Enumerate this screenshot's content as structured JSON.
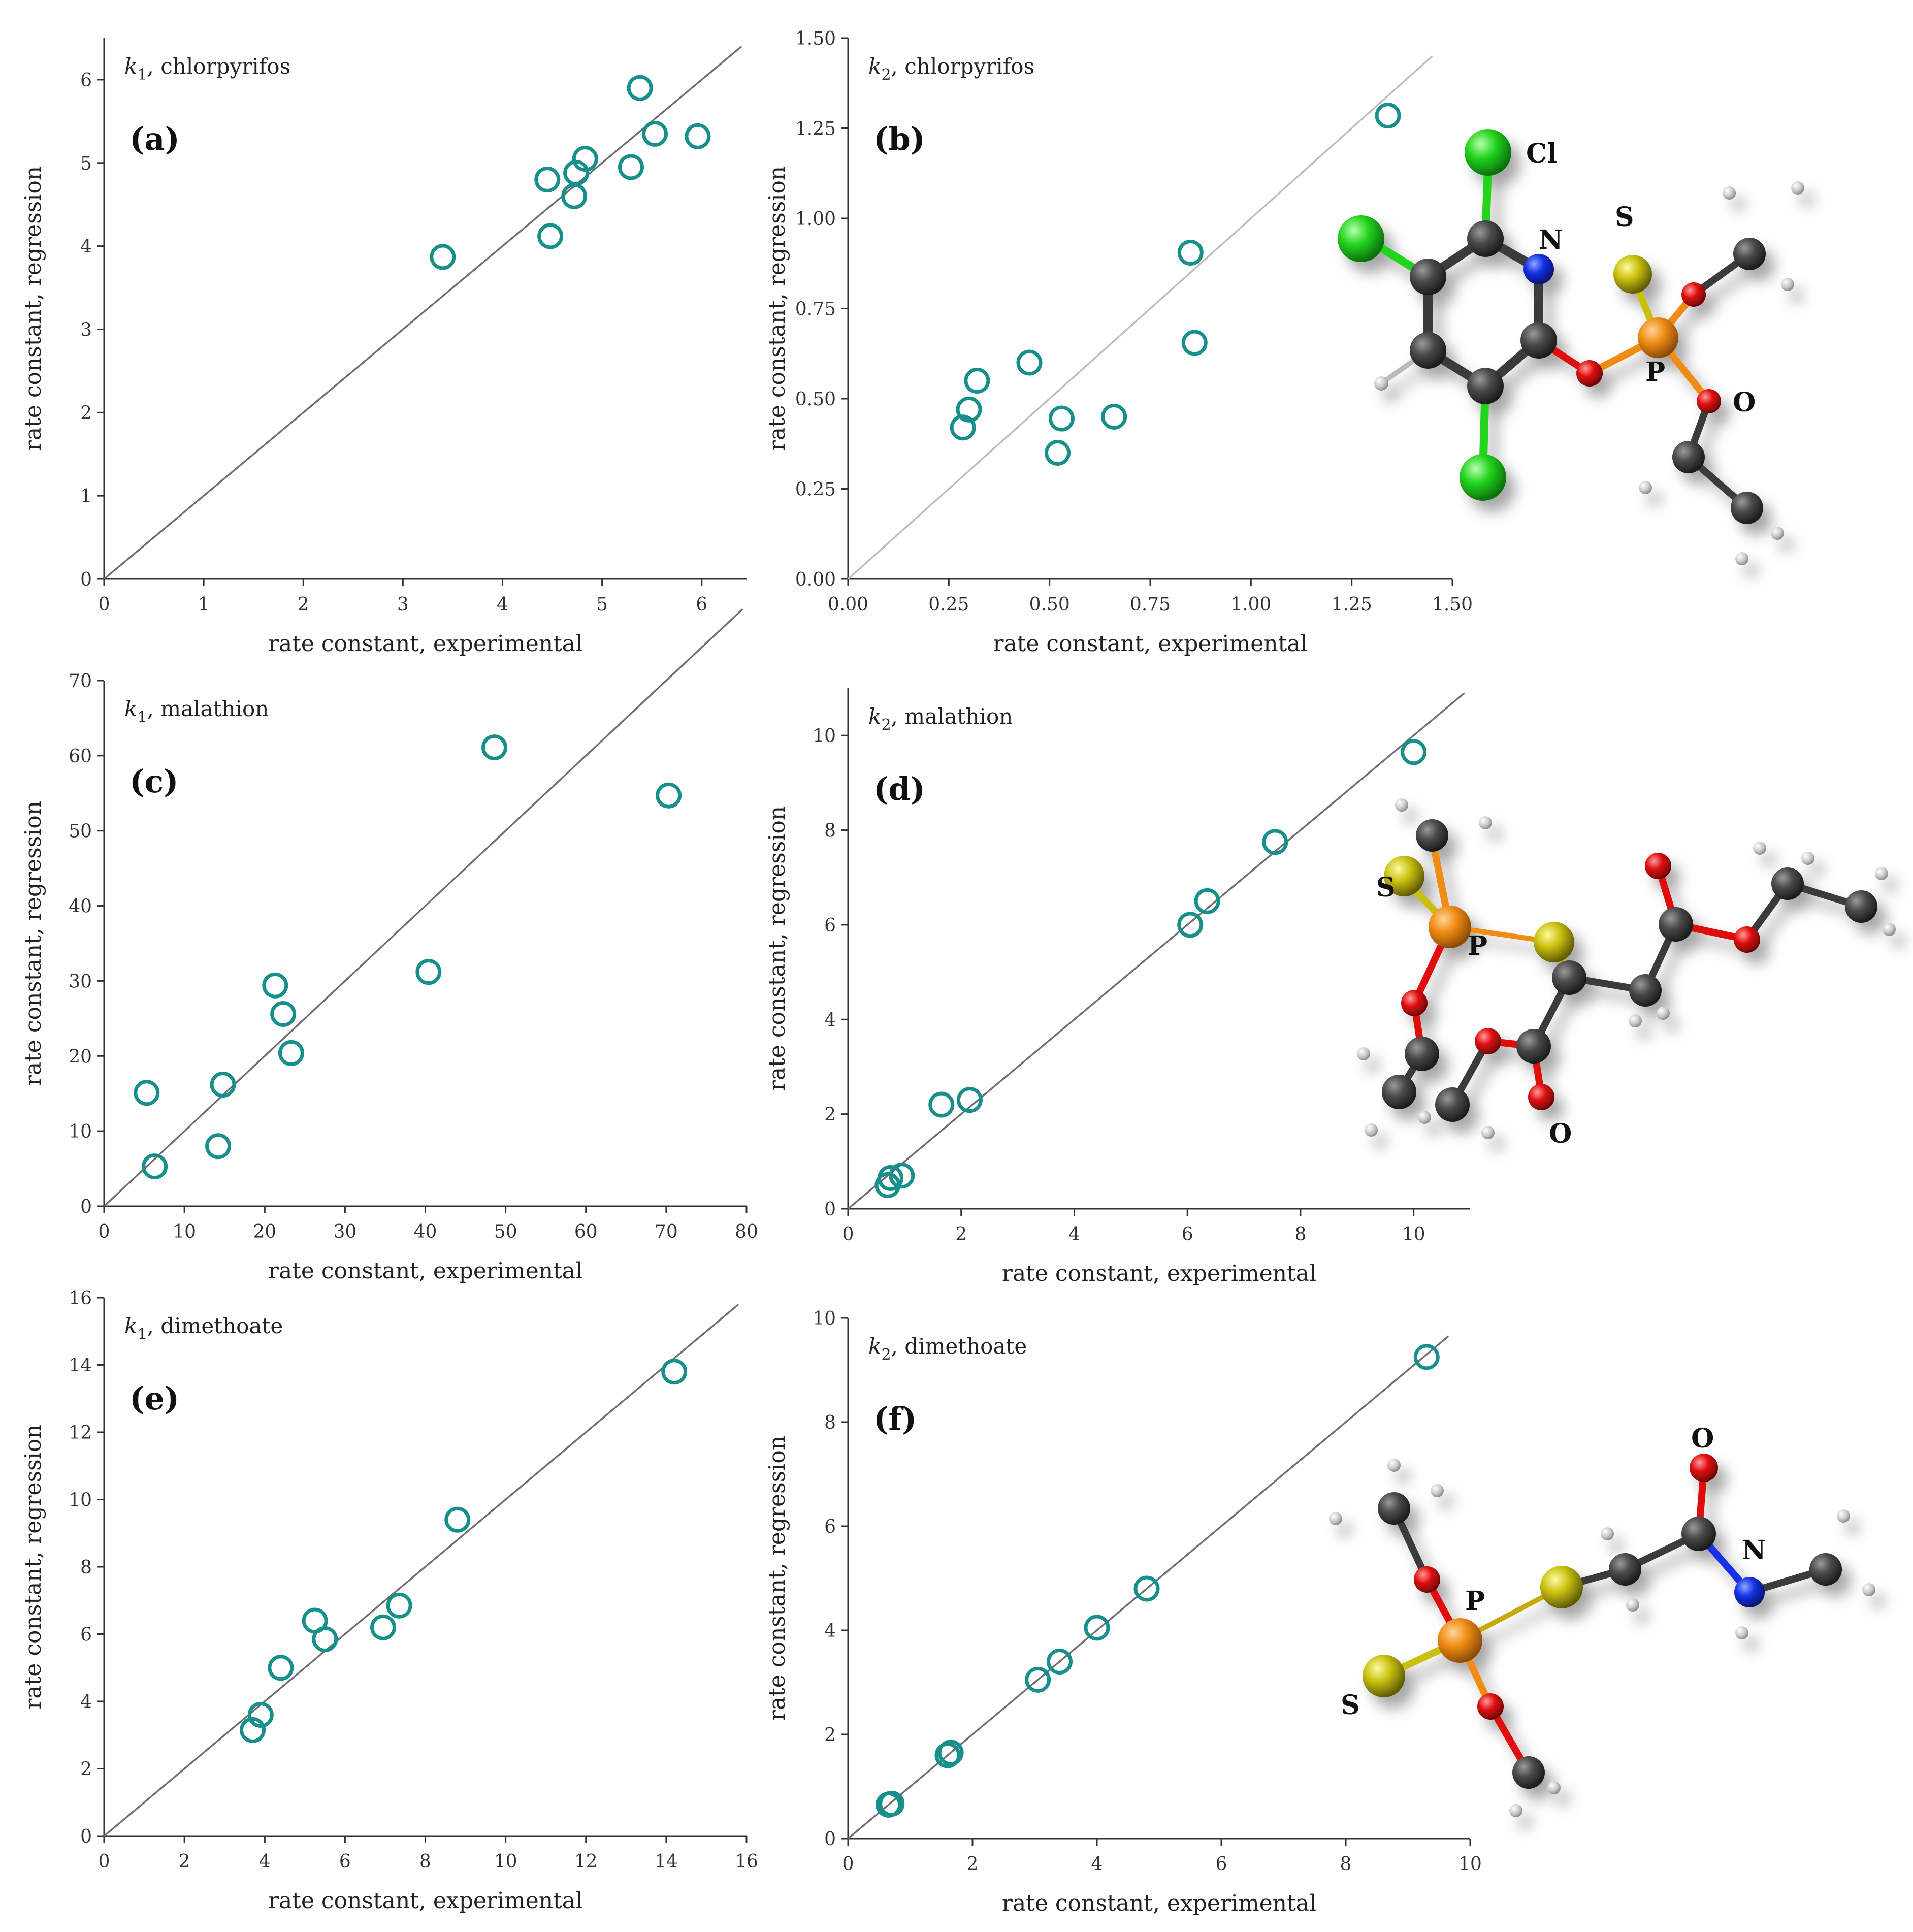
{
  "colors": {
    "marker": "#17908c",
    "axis": "#333333",
    "parity_line": "#6e6e6e",
    "parity_line_light": "#bdbdbd",
    "carbon": "#3a3a3a",
    "hydrogen": "#d9d9d9",
    "chlorine": "#22d41e",
    "nitrogen": "#1432e6",
    "oxygen": "#e00f0f",
    "phosphorus": "#f08c14",
    "sulfur": "#c9c00e"
  },
  "chart_data": [
    {
      "id": "a",
      "type": "scatter",
      "panel_label": "(a)",
      "title": {
        "k": "k",
        "sub": "1",
        "rest": ", chlorpyrifos"
      },
      "xlabel": "rate constant, experimental",
      "ylabel": "rate constant, regression",
      "xlim": [
        0,
        6.45
      ],
      "ylim": [
        0,
        6.5
      ],
      "xticks": [
        0,
        1,
        2,
        3,
        4,
        5,
        6
      ],
      "yticks": [
        0,
        1,
        2,
        3,
        4,
        5,
        6
      ],
      "xtick_labels": [
        "0",
        "1",
        "2",
        "3",
        "4",
        "5",
        "6"
      ],
      "ytick_labels": [
        "0",
        "1",
        "2",
        "3",
        "4",
        "5",
        "6"
      ],
      "parity_line": [
        0,
        6.4
      ],
      "line_style": "dark",
      "points": [
        {
          "x": 3.4,
          "y": 3.87
        },
        {
          "x": 4.45,
          "y": 4.8
        },
        {
          "x": 4.48,
          "y": 4.12
        },
        {
          "x": 4.72,
          "y": 4.6
        },
        {
          "x": 4.74,
          "y": 4.88
        },
        {
          "x": 4.83,
          "y": 5.05
        },
        {
          "x": 5.29,
          "y": 4.95
        },
        {
          "x": 5.38,
          "y": 5.9
        },
        {
          "x": 5.53,
          "y": 5.35
        },
        {
          "x": 5.96,
          "y": 5.32
        }
      ]
    },
    {
      "id": "b",
      "type": "scatter",
      "panel_label": "(b)",
      "title": {
        "k": "k",
        "sub": "2",
        "rest": ", chlorpyrifos"
      },
      "xlabel": "rate constant, experimental",
      "ylabel": "rate constant, regression",
      "xlim": [
        0,
        1.5
      ],
      "ylim": [
        0,
        1.5
      ],
      "xticks": [
        0,
        0.25,
        0.5,
        0.75,
        1.0,
        1.25,
        1.5
      ],
      "yticks": [
        0,
        0.25,
        0.5,
        0.75,
        1.0,
        1.25,
        1.5
      ],
      "xtick_labels": [
        "0.00",
        "0.25",
        "0.50",
        "0.75",
        "1.00",
        "1.25",
        "1.50"
      ],
      "ytick_labels": [
        "0.00",
        "0.25",
        "0.50",
        "0.75",
        "1.00",
        "1.25",
        "1.50"
      ],
      "parity_line": [
        0,
        1.45
      ],
      "line_style": "light",
      "points": [
        {
          "x": 0.285,
          "y": 0.42
        },
        {
          "x": 0.3,
          "y": 0.47
        },
        {
          "x": 0.32,
          "y": 0.55
        },
        {
          "x": 0.45,
          "y": 0.6
        },
        {
          "x": 0.52,
          "y": 0.35
        },
        {
          "x": 0.53,
          "y": 0.445
        },
        {
          "x": 0.66,
          "y": 0.45
        },
        {
          "x": 0.85,
          "y": 0.905
        },
        {
          "x": 0.86,
          "y": 0.655
        },
        {
          "x": 1.34,
          "y": 1.285
        }
      ]
    },
    {
      "id": "c",
      "type": "scatter",
      "panel_label": "(c)",
      "title": {
        "k": "k",
        "sub": "1",
        "rest": ", malathion"
      },
      "xlabel": "rate constant, experimental",
      "ylabel": "rate constant, regression",
      "xlim": [
        0,
        80
      ],
      "ylim": [
        0,
        70
      ],
      "xticks": [
        0,
        10,
        20,
        30,
        40,
        50,
        60,
        70,
        80
      ],
      "yticks": [
        0,
        10,
        20,
        30,
        40,
        50,
        60,
        70
      ],
      "xtick_labels": [
        "0",
        "10",
        "20",
        "30",
        "40",
        "50",
        "60",
        "70",
        "80"
      ],
      "ytick_labels": [
        "0",
        "10",
        "20",
        "30",
        "40",
        "50",
        "60",
        "70"
      ],
      "parity_line": [
        0,
        79.5
      ],
      "line_style": "dark",
      "points": [
        {
          "x": 5.3,
          "y": 15.1
        },
        {
          "x": 6.3,
          "y": 5.3
        },
        {
          "x": 14.2,
          "y": 8.0
        },
        {
          "x": 14.8,
          "y": 16.2
        },
        {
          "x": 21.3,
          "y": 29.4
        },
        {
          "x": 22.3,
          "y": 25.6
        },
        {
          "x": 23.3,
          "y": 20.4
        },
        {
          "x": 40.4,
          "y": 31.2
        },
        {
          "x": 48.6,
          "y": 61.1
        },
        {
          "x": 70.3,
          "y": 54.7
        }
      ]
    },
    {
      "id": "d",
      "type": "scatter",
      "panel_label": "(d)",
      "title": {
        "k": "k",
        "sub": "2",
        "rest": ", malathion"
      },
      "xlabel": "rate constant, experimental",
      "ylabel": "rate constant, regression",
      "xlim": [
        0,
        11
      ],
      "ylim": [
        0,
        11
      ],
      "xticks": [
        0,
        2,
        4,
        6,
        8,
        10
      ],
      "yticks": [
        0,
        2,
        4,
        6,
        8,
        10
      ],
      "xtick_labels": [
        "0",
        "2",
        "4",
        "6",
        "8",
        "10"
      ],
      "ytick_labels": [
        "0",
        "2",
        "4",
        "6",
        "8",
        "10"
      ],
      "parity_line": [
        0,
        10.9
      ],
      "line_style": "dark",
      "points": [
        {
          "x": 0.7,
          "y": 0.5
        },
        {
          "x": 0.75,
          "y": 0.65
        },
        {
          "x": 0.95,
          "y": 0.7
        },
        {
          "x": 1.65,
          "y": 2.2
        },
        {
          "x": 2.15,
          "y": 2.3
        },
        {
          "x": 6.05,
          "y": 6.0
        },
        {
          "x": 6.35,
          "y": 6.5
        },
        {
          "x": 7.55,
          "y": 7.75
        },
        {
          "x": 10.0,
          "y": 9.65
        }
      ]
    },
    {
      "id": "e",
      "type": "scatter",
      "panel_label": "(e)",
      "title": {
        "k": "k",
        "sub": "1",
        "rest": ", dimethoate"
      },
      "xlabel": "rate constant, experimental",
      "ylabel": "rate constant, regression",
      "xlim": [
        0,
        16
      ],
      "ylim": [
        0,
        16
      ],
      "xticks": [
        0,
        2,
        4,
        6,
        8,
        10,
        12,
        14,
        16
      ],
      "yticks": [
        0,
        2,
        4,
        6,
        8,
        10,
        12,
        14,
        16
      ],
      "xtick_labels": [
        "0",
        "2",
        "4",
        "6",
        "8",
        "10",
        "12",
        "14",
        "16"
      ],
      "ytick_labels": [
        "0",
        "2",
        "4",
        "6",
        "8",
        "10",
        "12",
        "14",
        "16"
      ],
      "parity_line": [
        0,
        15.8
      ],
      "line_style": "dark",
      "points": [
        {
          "x": 3.7,
          "y": 3.15
        },
        {
          "x": 3.9,
          "y": 3.6
        },
        {
          "x": 4.4,
          "y": 5.0
        },
        {
          "x": 5.25,
          "y": 6.4
        },
        {
          "x": 5.5,
          "y": 5.85
        },
        {
          "x": 6.95,
          "y": 6.2
        },
        {
          "x": 7.35,
          "y": 6.85
        },
        {
          "x": 8.8,
          "y": 9.4
        },
        {
          "x": 14.2,
          "y": 13.8
        }
      ]
    },
    {
      "id": "f",
      "type": "scatter",
      "panel_label": "(f)",
      "title": {
        "k": "k",
        "sub": "2",
        "rest": ", dimethoate"
      },
      "xlabel": "rate constant, experimental",
      "ylabel": "rate constant, regression",
      "xlim": [
        0,
        10
      ],
      "ylim": [
        0,
        10
      ],
      "xticks": [
        0,
        2,
        4,
        6,
        8,
        10
      ],
      "yticks": [
        0,
        2,
        4,
        6,
        8,
        10
      ],
      "xtick_labels": [
        "0",
        "2",
        "4",
        "6",
        "8",
        "10"
      ],
      "ytick_labels": [
        "0",
        "2",
        "4",
        "6",
        "8",
        "10"
      ],
      "parity_line": [
        0,
        9.65
      ],
      "line_style": "dark",
      "points": [
        {
          "x": 0.65,
          "y": 0.65
        },
        {
          "x": 0.7,
          "y": 0.67
        },
        {
          "x": 1.6,
          "y": 1.6
        },
        {
          "x": 1.65,
          "y": 1.65
        },
        {
          "x": 3.05,
          "y": 3.05
        },
        {
          "x": 3.4,
          "y": 3.4
        },
        {
          "x": 4.0,
          "y": 4.05
        },
        {
          "x": 4.8,
          "y": 4.8
        },
        {
          "x": 9.3,
          "y": 9.25
        }
      ]
    }
  ],
  "molecules": [
    {
      "name": "chlorpyrifos",
      "labels": [
        {
          "id": "cl",
          "text": "Cl"
        },
        {
          "id": "n",
          "text": "N"
        },
        {
          "id": "s",
          "text": "S"
        },
        {
          "id": "p",
          "text": "P"
        },
        {
          "id": "o",
          "text": "O"
        }
      ]
    },
    {
      "name": "malathion",
      "labels": [
        {
          "id": "s",
          "text": "S"
        },
        {
          "id": "p",
          "text": "P"
        },
        {
          "id": "o",
          "text": "O"
        }
      ]
    },
    {
      "name": "dimethoate",
      "labels": [
        {
          "id": "o",
          "text": "O"
        },
        {
          "id": "n",
          "text": "N"
        },
        {
          "id": "p",
          "text": "P"
        },
        {
          "id": "s",
          "text": "S"
        }
      ]
    }
  ]
}
